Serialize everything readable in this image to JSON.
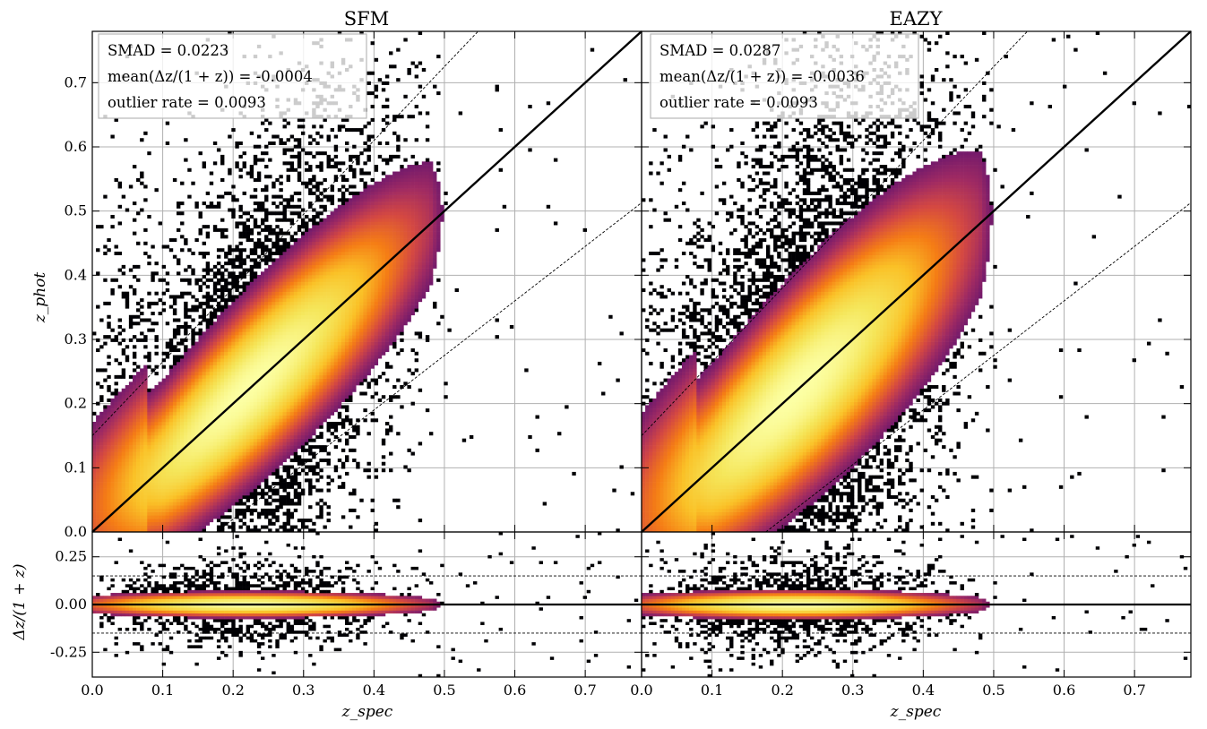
{
  "chart_data": [
    {
      "type": "heatmap",
      "title": "SFM",
      "xlabel": "",
      "ylabel": "z_phot",
      "xlim": [
        0.0,
        0.78
      ],
      "ylim": [
        0.0,
        0.78
      ],
      "xticks": [
        "0.0",
        "0.1",
        "0.2",
        "0.3",
        "0.4",
        "0.5",
        "0.6",
        "0.7"
      ],
      "yticks": [
        "0.0",
        "0.1",
        "0.2",
        "0.3",
        "0.4",
        "0.5",
        "0.6",
        "0.7"
      ],
      "grid": true,
      "colormap": "inferno",
      "stats": [
        "SMAD = 0.0223",
        "mean(Δz/(1 + z)) = -0.0004",
        "outlier rate = 0.0093"
      ],
      "one_to_one_line": true,
      "outlier_bounds": 0.15,
      "density": {
        "ridge_slope": 1.0,
        "ridge_offset": 0.0,
        "scatter": 0.0223,
        "low_z_excess": 0.06
      }
    },
    {
      "type": "heatmap",
      "title": "EAZY",
      "xlabel": "",
      "ylabel": "",
      "xlim": [
        0.0,
        0.78
      ],
      "ylim": [
        0.0,
        0.78
      ],
      "xticks": [
        "0.0",
        "0.1",
        "0.2",
        "0.3",
        "0.4",
        "0.5",
        "0.6",
        "0.7"
      ],
      "yticks": [],
      "grid": true,
      "colormap": "inferno",
      "stats": [
        "SMAD = 0.0287",
        "mean(Δz/(1 + z)) = -0.0036",
        "outlier rate = 0.0093"
      ],
      "one_to_one_line": true,
      "outlier_bounds": 0.15,
      "density": {
        "ridge_slope": 1.0,
        "ridge_offset": -0.003,
        "scatter": 0.0287,
        "low_z_excess": 0.06
      }
    },
    {
      "type": "heatmap",
      "title": "",
      "xlabel": "z_spec",
      "ylabel": "Δz/(1 + z)",
      "xlim": [
        0.0,
        0.78
      ],
      "ylim": [
        -0.38,
        0.38
      ],
      "xticks": [
        "0.0",
        "0.1",
        "0.2",
        "0.3",
        "0.4",
        "0.5",
        "0.6",
        "0.7"
      ],
      "yticks": [
        "0.25",
        "0.00",
        "-0.25"
      ],
      "grid": true,
      "colormap": "inferno",
      "reference_lines": [
        0.0,
        0.15,
        -0.15
      ]
    },
    {
      "type": "heatmap",
      "title": "",
      "xlabel": "z_spec",
      "ylabel": "",
      "xlim": [
        0.0,
        0.78
      ],
      "ylim": [
        -0.38,
        0.38
      ],
      "xticks": [
        "0.0",
        "0.1",
        "0.2",
        "0.3",
        "0.4",
        "0.5",
        "0.6",
        "0.7"
      ],
      "yticks": [],
      "grid": true,
      "colormap": "inferno",
      "reference_lines": [
        0.0,
        0.15,
        -0.15
      ]
    }
  ]
}
